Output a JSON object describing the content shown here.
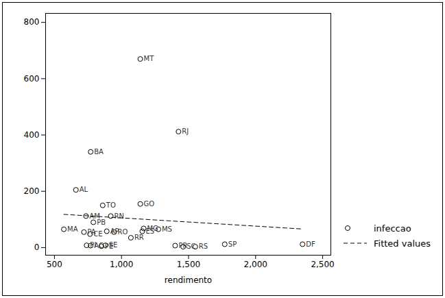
{
  "chart_data": {
    "type": "scatter",
    "xlabel": "rendimento",
    "xlim": [
      434,
      2561
    ],
    "ylim": [
      -27,
      832
    ],
    "xticks": [
      500,
      1000,
      1500,
      2000,
      2500
    ],
    "yticks": [
      0,
      200,
      400,
      600,
      800
    ],
    "grid": false,
    "legend": "right",
    "series": [
      {
        "name": "infeccao",
        "type": "scatter",
        "marker": "circle",
        "color": "#000000",
        "labels": [
          "MT",
          "RJ",
          "BA",
          "AL",
          "TO",
          "GO",
          "AM",
          "RN",
          "PB",
          "MA",
          "PA",
          "CE",
          "AP",
          "RO",
          "MG",
          "MS",
          "ES",
          "RR",
          "PI",
          "AC",
          "PE",
          "SE",
          "PR",
          "SC",
          "RS",
          "SP",
          "DF"
        ],
        "x": [
          1140,
          1425,
          770,
          660,
          860,
          1140,
          735,
          920,
          790,
          570,
          720,
          765,
          890,
          945,
          1165,
          1275,
          1155,
          1070,
          740,
          770,
          850,
          880,
          1400,
          1460,
          1550,
          1770,
          2350
        ],
        "values": [
          670,
          412,
          340,
          205,
          150,
          155,
          112,
          112,
          90,
          65,
          55,
          48,
          58,
          55,
          68,
          65,
          58,
          35,
          8,
          7,
          5,
          8,
          7,
          3,
          3,
          12,
          12
        ]
      },
      {
        "name": "Fitted values",
        "type": "line",
        "line_style": "dashed",
        "color": "#000000",
        "x": [
          570,
          2350
        ],
        "values": [
          118,
          66
        ]
      }
    ]
  }
}
